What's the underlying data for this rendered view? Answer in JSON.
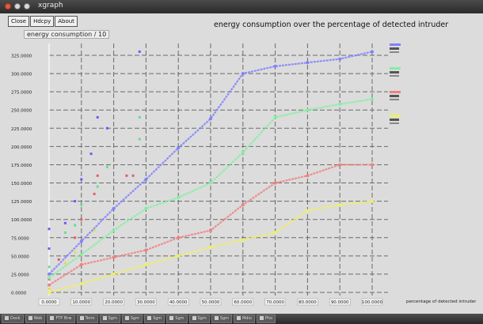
{
  "window": {
    "title": "xgraph"
  },
  "toolbar": {
    "buttons": [
      "Close",
      "Hdcpy",
      "About"
    ]
  },
  "axis_legend": "energy consumption / 10",
  "chart_data": {
    "type": "line",
    "title": "energy consumption over the percentage of detected intruder",
    "xlabel": "percentage of detected intruder",
    "ylabel": "energy consumption / 10",
    "x": [
      0,
      10,
      20,
      30,
      40,
      50,
      60,
      70,
      80,
      90,
      100
    ],
    "x_tick_labels": [
      "0.0000",
      "10.0000",
      "20.0000",
      "30.0000",
      "40.0000",
      "50.0000",
      "60.0000",
      "70.0000",
      "80.0000",
      "90.0000",
      "100.0000"
    ],
    "y_tick_labels": [
      "0.0000",
      "25.0000",
      "50.0000",
      "75.0000",
      "100.0000",
      "125.0000",
      "150.0000",
      "175.0000",
      "200.0000",
      "225.0000",
      "250.0000",
      "275.0000",
      "300.0000",
      "325.0000"
    ],
    "xlim": [
      0,
      100
    ],
    "ylim": [
      0,
      325
    ],
    "grid": true,
    "legend_placement": "right",
    "series": [
      {
        "color": "#8080ff",
        "values": [
          25,
          70,
          115,
          155,
          198,
          238,
          300,
          310,
          315,
          320,
          330
        ]
      },
      {
        "color": "#80f0a0",
        "values": [
          20,
          52,
          85,
          115,
          130,
          150,
          192,
          240,
          250,
          258,
          265
        ]
      },
      {
        "color": "#f08080",
        "values": [
          10,
          38,
          48,
          58,
          75,
          85,
          120,
          150,
          160,
          175,
          175
        ]
      },
      {
        "color": "#f0f060",
        "values": [
          0,
          12,
          25,
          38,
          50,
          62,
          72,
          82,
          112,
          120,
          125
        ]
      }
    ],
    "scatter_series": [
      {
        "color": "#6060ff",
        "points": [
          [
            0,
            60
          ],
          [
            0,
            87
          ],
          [
            5,
            95
          ],
          [
            8,
            125
          ],
          [
            10,
            155
          ],
          [
            13,
            190
          ],
          [
            15,
            240
          ],
          [
            18,
            225
          ],
          [
            28,
            330
          ]
        ]
      },
      {
        "color": "#60e090",
        "points": [
          [
            0,
            35
          ],
          [
            5,
            82
          ],
          [
            8,
            92
          ],
          [
            10,
            120
          ],
          [
            15,
            145
          ],
          [
            18,
            172
          ],
          [
            28,
            210
          ],
          [
            28,
            240
          ]
        ]
      },
      {
        "color": "#e06060",
        "points": [
          [
            0,
            18
          ],
          [
            3,
            45
          ],
          [
            8,
            75
          ],
          [
            10,
            100
          ],
          [
            14,
            135
          ],
          [
            15,
            160
          ],
          [
            24,
            160
          ],
          [
            26,
            160
          ]
        ]
      },
      {
        "color": "#e0e040",
        "points": [
          [
            0,
            5
          ],
          [
            5,
            40
          ],
          [
            8,
            55
          ],
          [
            10,
            70
          ],
          [
            14,
            85
          ],
          [
            20,
            115
          ]
        ]
      }
    ]
  },
  "taskbar": {
    "items": [
      "Dock",
      "Web",
      "FTP Brw",
      "Term",
      "Sgm",
      "Sgm",
      "Sgm",
      "Sgm",
      "Sgm",
      "Sgm",
      "Mdio",
      "Pho"
    ]
  }
}
